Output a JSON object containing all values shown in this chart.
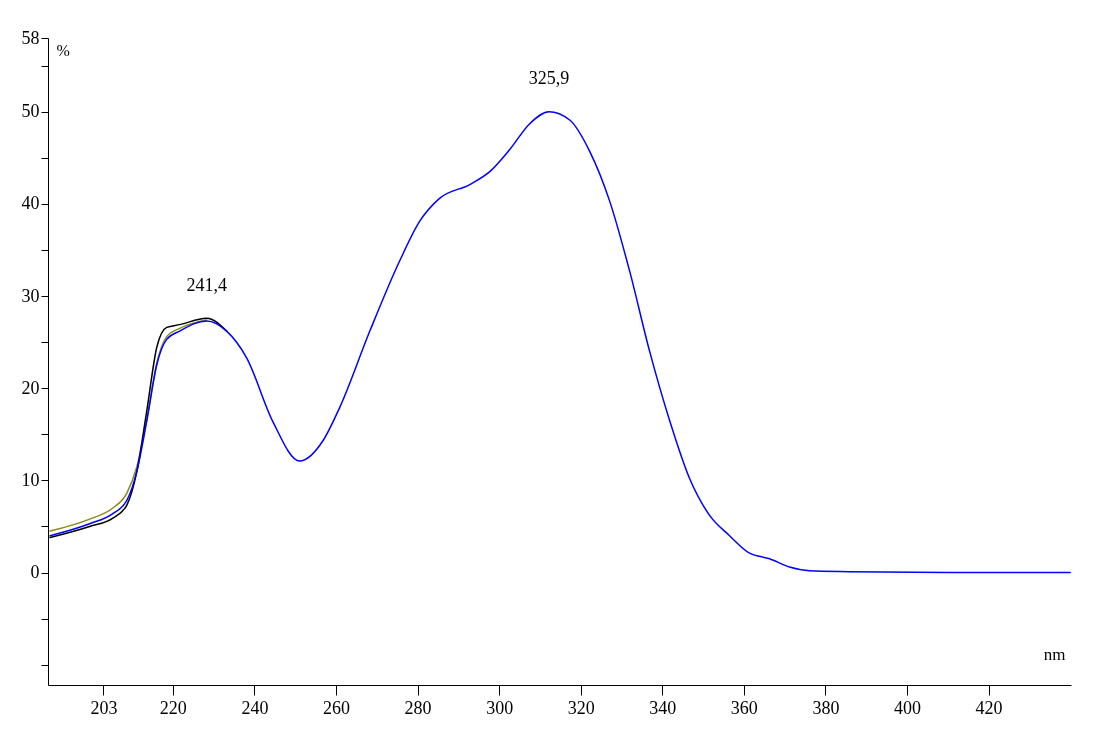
{
  "chart_data": {
    "type": "line",
    "xlabel": "nm",
    "ylabel": "%",
    "xlim": [
      189.4,
      440.2
    ],
    "ylim": [
      -12.2,
      58
    ],
    "xticks": [
      203,
      220,
      240,
      260,
      280,
      300,
      320,
      340,
      360,
      380,
      400,
      420
    ],
    "yticks": [
      {
        "value": -10,
        "label": null
      },
      {
        "value": -5,
        "label": null
      },
      0,
      {
        "value": 5,
        "label": null
      },
      10,
      {
        "value": 15,
        "label": null
      },
      20,
      {
        "value": 25,
        "label": null
      },
      30,
      {
        "value": 35,
        "label": null
      },
      40,
      {
        "value": 45,
        "label": null
      },
      50,
      {
        "value": 55,
        "label": null
      },
      58
    ],
    "x": [
      189.9,
      199.6,
      205.3,
      208.7,
      211.2,
      213.6,
      216.1,
      218.5,
      221.7,
      228.3,
      233.2,
      238.1,
      244.5,
      251.1,
      256.8,
      260.9,
      268.3,
      275.6,
      280.5,
      285.4,
      292.8,
      297.7,
      302.6,
      307.5,
      312.2,
      317.3,
      322.2,
      327.1,
      332.0,
      336.9,
      341.8,
      346.7,
      351.6,
      356.5,
      361.4,
      366.3,
      371.2,
      376.1,
      385.9,
      410.4,
      440
    ],
    "series": [
      {
        "color": "#8b8b1a",
        "values": [
          4.5,
          5.8,
          7.0,
          8.6,
          11.5,
          16.6,
          22.8,
          25.6,
          26.5,
          27.4,
          null,
          null,
          null,
          null,
          null,
          null,
          null,
          null,
          null,
          null,
          null,
          null,
          null,
          null,
          null,
          null,
          null,
          null,
          null,
          null,
          null,
          null,
          null,
          null,
          null,
          null,
          null,
          null,
          null,
          null,
          null
        ]
      },
      {
        "color": "#000000",
        "values": [
          3.8,
          5.0,
          5.9,
          7.3,
          11.0,
          17.5,
          24.5,
          26.6,
          26.9,
          27.6,
          26.2,
          null,
          null,
          null,
          null,
          null,
          null,
          null,
          null,
          null,
          null,
          null,
          null,
          null,
          null,
          null,
          null,
          null,
          null,
          null,
          null,
          null,
          null,
          null,
          null,
          null,
          null,
          null,
          null,
          null,
          null
        ]
      },
      {
        "color": "#0000ff",
        "values": [
          4.0,
          5.3,
          6.4,
          7.8,
          11.0,
          16.4,
          22.6,
          25.3,
          26.2,
          27.3,
          26.2,
          23.3,
          16.4,
          12.1,
          14.3,
          17.9,
          26.2,
          33.8,
          38.1,
          40.6,
          42.1,
          43.5,
          45.9,
          48.7,
          50.0,
          49.1,
          45.7,
          40.3,
          32.7,
          24.0,
          16.5,
          10.2,
          6.2,
          4.0,
          2.1,
          1.5,
          0.6,
          0.2,
          0.1,
          0,
          0
        ]
      }
    ],
    "annotations": [
      {
        "text": "241,4",
        "x": 228.3,
        "y": 27.5
      },
      {
        "text": "325,9",
        "x": 312.2,
        "y": 50.0
      }
    ],
    "line_style": "solid",
    "marker": "none",
    "grid": false,
    "legend": false
  }
}
